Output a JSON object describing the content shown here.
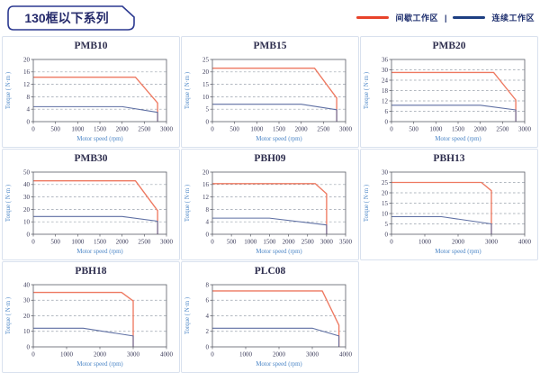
{
  "header": {
    "title": "130框以下系列",
    "legend_separator": "|",
    "legend": [
      {
        "name": "intermittent-zone",
        "label": "间歇工作区",
        "color": "#e8432a"
      },
      {
        "name": "continuous-zone",
        "label": "连续工作区",
        "color": "#1e3f82"
      }
    ]
  },
  "colors": {
    "red_line": "#ee7961",
    "blue_line": "#5e6fa3",
    "grid_line": "#9aa2ad",
    "plot_border": "#5a5c66",
    "card_border": "#d9e1ee",
    "title_text": "#2e2e4e",
    "axis_text": "#4a85c6",
    "brand_navy": "#2b3990"
  },
  "chart_data": [
    {
      "type": "line",
      "title": "PMB10",
      "xlabel": "Motor speed (rpm)",
      "ylabel": "Torque ( N·m )",
      "xlim": [
        0,
        3000
      ],
      "ylim": [
        0,
        20
      ],
      "xticks": [
        0,
        500,
        1000,
        1500,
        2000,
        2500,
        3000
      ],
      "yticks": [
        0,
        4,
        8,
        12,
        16,
        20
      ],
      "grid": true,
      "legend_position": "none",
      "series": [
        {
          "name": "间歇工作区",
          "color": "#ee7961",
          "points": [
            [
              0,
              14.3
            ],
            [
              2300,
              14.3
            ],
            [
              2800,
              6
            ],
            [
              2800,
              0
            ]
          ]
        },
        {
          "name": "连续工作区",
          "color": "#5e6fa3",
          "points": [
            [
              0,
              4.8
            ],
            [
              2000,
              4.8
            ],
            [
              2800,
              3
            ],
            [
              2800,
              0
            ]
          ]
        }
      ]
    },
    {
      "type": "line",
      "title": "PMB15",
      "xlabel": "Motor speed (rpm)",
      "ylabel": "Torque ( N·m )",
      "xlim": [
        0,
        3000
      ],
      "ylim": [
        0,
        25
      ],
      "xticks": [
        0,
        500,
        1000,
        1500,
        2000,
        2500,
        3000
      ],
      "yticks": [
        0,
        5,
        10,
        15,
        20,
        25
      ],
      "grid": true,
      "legend_position": "none",
      "series": [
        {
          "name": "间歇工作区",
          "color": "#ee7961",
          "points": [
            [
              0,
              21.5
            ],
            [
              2300,
              21.5
            ],
            [
              2800,
              9.5
            ],
            [
              2800,
              0
            ]
          ]
        },
        {
          "name": "连续工作区",
          "color": "#5e6fa3",
          "points": [
            [
              0,
              7
            ],
            [
              2000,
              7
            ],
            [
              2800,
              4.8
            ],
            [
              2800,
              0
            ]
          ]
        }
      ]
    },
    {
      "type": "line",
      "title": "PMB20",
      "xlabel": "Motor speed (rpm)",
      "ylabel": "Torque ( N·m )",
      "xlim": [
        0,
        3000
      ],
      "ylim": [
        0,
        36
      ],
      "xticks": [
        0,
        500,
        1000,
        1500,
        2000,
        2500,
        3000
      ],
      "yticks": [
        0,
        6,
        12,
        18,
        24,
        30,
        36
      ],
      "grid": true,
      "legend_position": "none",
      "series": [
        {
          "name": "间歇工作区",
          "color": "#ee7961",
          "points": [
            [
              0,
              28.5
            ],
            [
              2300,
              28.5
            ],
            [
              2800,
              12.5
            ],
            [
              2800,
              0
            ]
          ]
        },
        {
          "name": "连续工作区",
          "color": "#5e6fa3",
          "points": [
            [
              0,
              9.5
            ],
            [
              2000,
              9.5
            ],
            [
              2800,
              6.8
            ],
            [
              2800,
              0
            ]
          ]
        }
      ]
    },
    {
      "type": "line",
      "title": "PMB30",
      "xlabel": "Motor speed (rpm)",
      "ylabel": "Torque ( N·m )",
      "xlim": [
        0,
        3000
      ],
      "ylim": [
        0,
        50
      ],
      "xticks": [
        0,
        500,
        1000,
        1500,
        2000,
        2500,
        3000
      ],
      "yticks": [
        0,
        10,
        20,
        30,
        40,
        50
      ],
      "grid": true,
      "legend_position": "none",
      "series": [
        {
          "name": "间歇工作区",
          "color": "#ee7961",
          "points": [
            [
              0,
              43
            ],
            [
              2300,
              43
            ],
            [
              2800,
              19
            ],
            [
              2800,
              0
            ]
          ]
        },
        {
          "name": "连续工作区",
          "color": "#5e6fa3",
          "points": [
            [
              0,
              14.3
            ],
            [
              2000,
              14.3
            ],
            [
              2800,
              10.5
            ],
            [
              2800,
              0
            ]
          ]
        }
      ]
    },
    {
      "type": "line",
      "title": "PBH09",
      "xlabel": "Motor speed (rpm)",
      "ylabel": "Torque ( N·m )",
      "xlim": [
        0,
        3500
      ],
      "ylim": [
        0,
        20
      ],
      "xticks": [
        0,
        500,
        1000,
        1500,
        2000,
        2500,
        3000,
        3500
      ],
      "yticks": [
        0,
        4,
        8,
        12,
        16,
        20
      ],
      "grid": true,
      "legend_position": "none",
      "series": [
        {
          "name": "间歇工作区",
          "color": "#ee7961",
          "points": [
            [
              0,
              16.3
            ],
            [
              2700,
              16.3
            ],
            [
              3000,
              13
            ],
            [
              3000,
              0
            ]
          ]
        },
        {
          "name": "连续工作区",
          "color": "#5e6fa3",
          "points": [
            [
              0,
              5.2
            ],
            [
              1500,
              5.2
            ],
            [
              3000,
              3
            ],
            [
              3000,
              0
            ]
          ]
        }
      ]
    },
    {
      "type": "line",
      "title": "PBH13",
      "xlabel": "Motor speed (rpm)",
      "ylabel": "Torque ( N·m )",
      "xlim": [
        0,
        4000
      ],
      "ylim": [
        0,
        30
      ],
      "xticks": [
        0,
        1000,
        2000,
        3000,
        4000
      ],
      "yticks": [
        0,
        5,
        10,
        15,
        20,
        25,
        30
      ],
      "grid": true,
      "legend_position": "none",
      "series": [
        {
          "name": "间歇工作区",
          "color": "#ee7961",
          "points": [
            [
              0,
              25
            ],
            [
              2700,
              25
            ],
            [
              3000,
              21
            ],
            [
              3000,
              0
            ]
          ]
        },
        {
          "name": "连续工作区",
          "color": "#5e6fa3",
          "points": [
            [
              0,
              8.5
            ],
            [
              1500,
              8.5
            ],
            [
              3000,
              5
            ],
            [
              3000,
              0
            ]
          ]
        }
      ]
    },
    {
      "type": "line",
      "title": "PBH18",
      "xlabel": "Motor speed (rpm)",
      "ylabel": "Torque ( N·m )",
      "xlim": [
        0,
        4000
      ],
      "ylim": [
        0,
        40
      ],
      "xticks": [
        0,
        1000,
        2000,
        3000,
        4000
      ],
      "yticks": [
        0,
        10,
        20,
        30,
        40
      ],
      "grid": true,
      "legend_position": "none",
      "series": [
        {
          "name": "间歇工作区",
          "color": "#ee7961",
          "points": [
            [
              0,
              35
            ],
            [
              2650,
              35
            ],
            [
              3000,
              29.5
            ],
            [
              3000,
              0
            ]
          ]
        },
        {
          "name": "连续工作区",
          "color": "#5e6fa3",
          "points": [
            [
              0,
              12
            ],
            [
              1500,
              12
            ],
            [
              3000,
              7
            ],
            [
              3000,
              0
            ]
          ]
        }
      ]
    },
    {
      "type": "line",
      "title": "PLC08",
      "xlabel": "Motor speed (rpm)",
      "ylabel": "Torque ( N·m )",
      "xlim": [
        0,
        4000
      ],
      "ylim": [
        0,
        8
      ],
      "xticks": [
        0,
        1000,
        2000,
        3000,
        4000
      ],
      "yticks": [
        0,
        2,
        4,
        6,
        8
      ],
      "grid": true,
      "legend_position": "none",
      "series": [
        {
          "name": "间歇工作区",
          "color": "#ee7961",
          "points": [
            [
              0,
              7.2
            ],
            [
              3300,
              7.2
            ],
            [
              3800,
              2.8
            ],
            [
              3800,
              0
            ]
          ]
        },
        {
          "name": "连续工作区",
          "color": "#5e6fa3",
          "points": [
            [
              0,
              2.4
            ],
            [
              3000,
              2.4
            ],
            [
              3800,
              1.4
            ],
            [
              3800,
              0
            ]
          ]
        }
      ]
    }
  ]
}
